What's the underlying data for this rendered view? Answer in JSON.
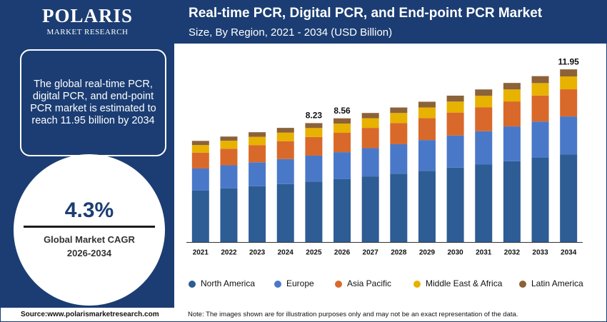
{
  "brand": {
    "name": "POLARIS",
    "tagline": "MARKET RESEARCH"
  },
  "summary": "The global real-time PCR, digital PCR, and end-point PCR market is estimated to reach 11.95 billion by 2034",
  "cagr": {
    "value": "4.3%",
    "label": "Global Market CAGR",
    "period": "2026-2034"
  },
  "source": "Source:www.polarismarketresearch.com",
  "note": "Note: The images shown are for illustration purposes only and may not be an exact representation of the data.",
  "chart_data": {
    "type": "stacked-bar",
    "title": "Real-time PCR, Digital PCR, and End-point PCR Market",
    "subtitle": "Size, By Region, 2021 - 2034 (USD Billion)",
    "categories": [
      "2021",
      "2022",
      "2023",
      "2024",
      "2025",
      "2026",
      "2027",
      "2028",
      "2029",
      "2030",
      "2031",
      "2032",
      "2033",
      "2034"
    ],
    "series": [
      {
        "name": "North America",
        "color": "#2e5c94",
        "values": [
          3.56,
          3.71,
          3.86,
          4.01,
          4.18,
          4.35,
          4.54,
          4.73,
          4.93,
          5.15,
          5.36,
          5.59,
          5.83,
          6.07
        ]
      },
      {
        "name": "Europe",
        "color": "#4a78c9",
        "values": [
          1.53,
          1.6,
          1.66,
          1.73,
          1.8,
          1.87,
          1.96,
          2.04,
          2.13,
          2.22,
          2.31,
          2.41,
          2.51,
          2.62
        ]
      },
      {
        "name": "Asia Pacific",
        "color": "#d9692a",
        "values": [
          1.1,
          1.15,
          1.19,
          1.24,
          1.29,
          1.34,
          1.4,
          1.46,
          1.52,
          1.59,
          1.66,
          1.73,
          1.8,
          1.88
        ]
      },
      {
        "name": "Middle East & Africa",
        "color": "#e8b200",
        "values": [
          0.52,
          0.55,
          0.57,
          0.59,
          0.62,
          0.64,
          0.67,
          0.7,
          0.73,
          0.76,
          0.79,
          0.83,
          0.86,
          0.89
        ]
      },
      {
        "name": "Latin America",
        "color": "#8c6239",
        "values": [
          0.29,
          0.29,
          0.32,
          0.33,
          0.34,
          0.36,
          0.36,
          0.38,
          0.4,
          0.41,
          0.44,
          0.45,
          0.48,
          0.49
        ]
      }
    ],
    "totals": [
      null,
      null,
      null,
      null,
      8.23,
      8.56,
      null,
      null,
      null,
      null,
      null,
      null,
      null,
      11.95
    ],
    "ylim": [
      0,
      12.5
    ]
  }
}
